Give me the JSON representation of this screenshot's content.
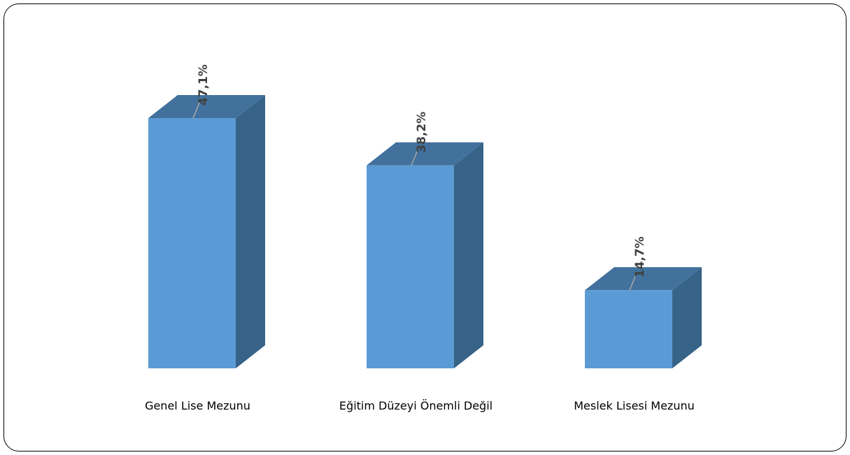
{
  "chart_data": {
    "type": "bar",
    "style": "3d-column",
    "categories": [
      "Genel Lise Mezunu",
      "Eğitim Düzeyi Önemli Değil",
      "Meslek Lisesi Mezunu"
    ],
    "values": [
      47.1,
      38.2,
      14.7
    ],
    "value_labels": [
      "47,1%",
      "38,2%",
      "14,7%"
    ],
    "title": "",
    "xlabel": "",
    "ylabel": "",
    "ylim": [
      0,
      50
    ],
    "grid": false,
    "legend": "none",
    "colors": {
      "front": "#5b9bd5",
      "top": "#41719c",
      "side": "#386388",
      "leader": "#a6a6a6"
    }
  }
}
